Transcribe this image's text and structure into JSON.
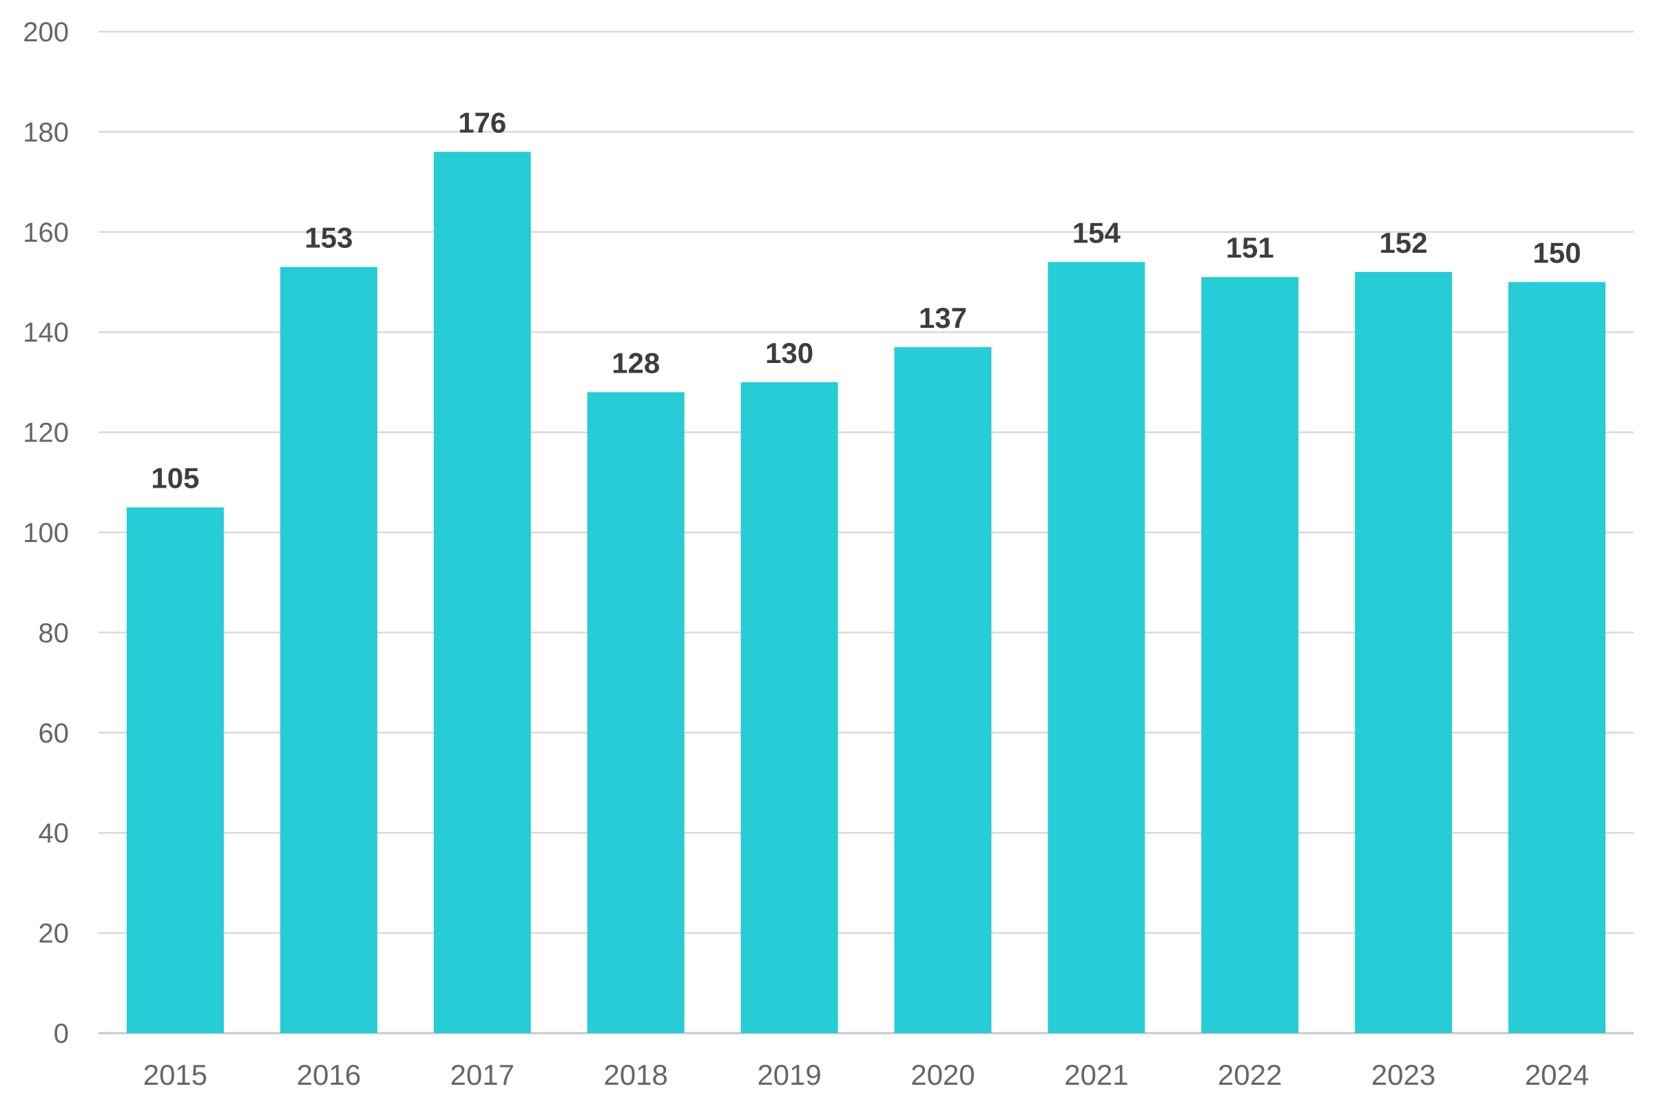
{
  "chart_data": {
    "type": "bar",
    "title": "",
    "xlabel": "",
    "ylabel": "",
    "categories": [
      "2015",
      "2016",
      "2017",
      "2018",
      "2019",
      "2020",
      "2021",
      "2022",
      "2023",
      "2024"
    ],
    "values": [
      105,
      153,
      176,
      128,
      130,
      137,
      154,
      151,
      152,
      150
    ],
    "ylim": [
      0,
      200
    ],
    "yticks": [
      0,
      20,
      40,
      60,
      80,
      100,
      120,
      140,
      160,
      180,
      200
    ],
    "grid": true,
    "legend": "none",
    "data_labels": true,
    "colors": {
      "bar": "#26ccd6",
      "grid": "#d9d9d9",
      "tick_text": "#666666",
      "value_text": "#3d3d3d"
    }
  }
}
